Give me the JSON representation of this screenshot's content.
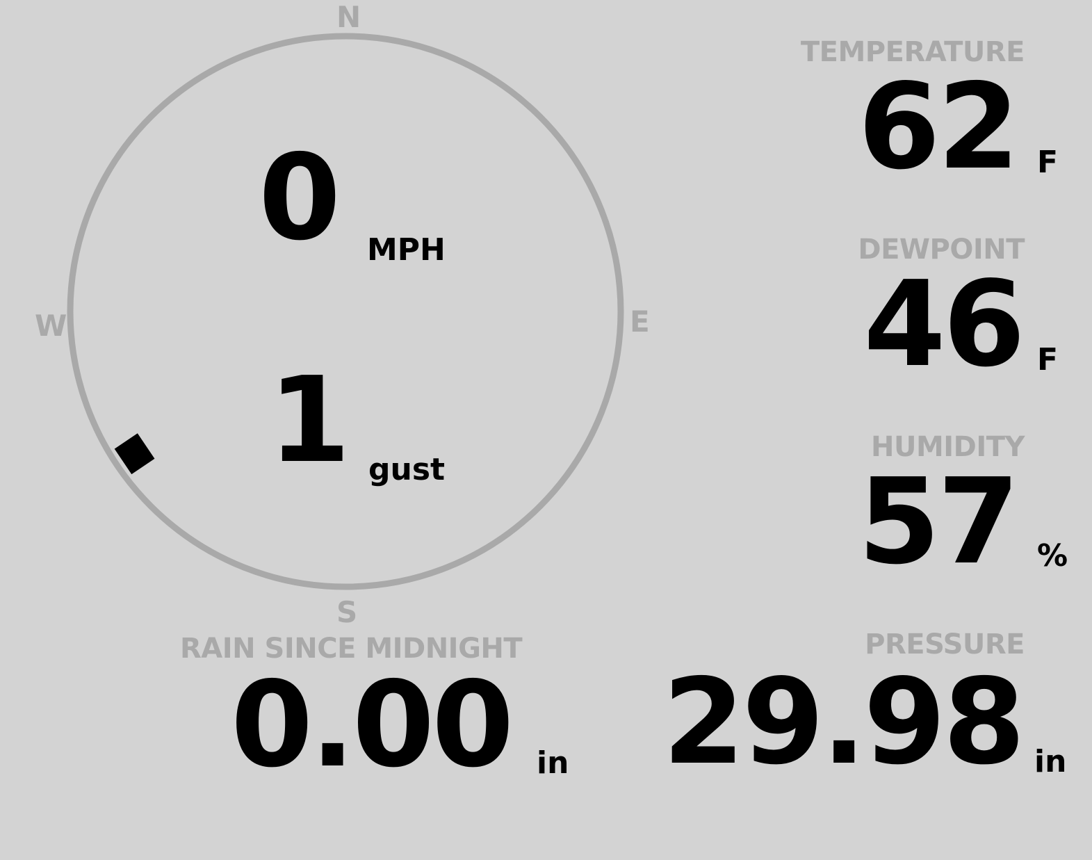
{
  "colors": {
    "background": "#d3d3d3",
    "label": "#a9a9a9",
    "value": "#000000"
  },
  "wind": {
    "cardinals": {
      "n": "N",
      "e": "E",
      "s": "S",
      "w": "W"
    },
    "speed": "0",
    "speed_unit": "MPH",
    "gust": "1",
    "gust_unit": "gust",
    "direction_degrees": 236
  },
  "temperature": {
    "label": "TEMPERATURE",
    "value": "62",
    "unit": "F"
  },
  "dewpoint": {
    "label": "DEWPOINT",
    "value": "46",
    "unit": "F"
  },
  "humidity": {
    "label": "HUMIDITY",
    "value": "57",
    "unit": "%"
  },
  "rain": {
    "label": "RAIN SINCE MIDNIGHT",
    "value": "0.00",
    "unit": "in"
  },
  "pressure": {
    "label": "PRESSURE",
    "value": "29.98",
    "unit": "in"
  }
}
